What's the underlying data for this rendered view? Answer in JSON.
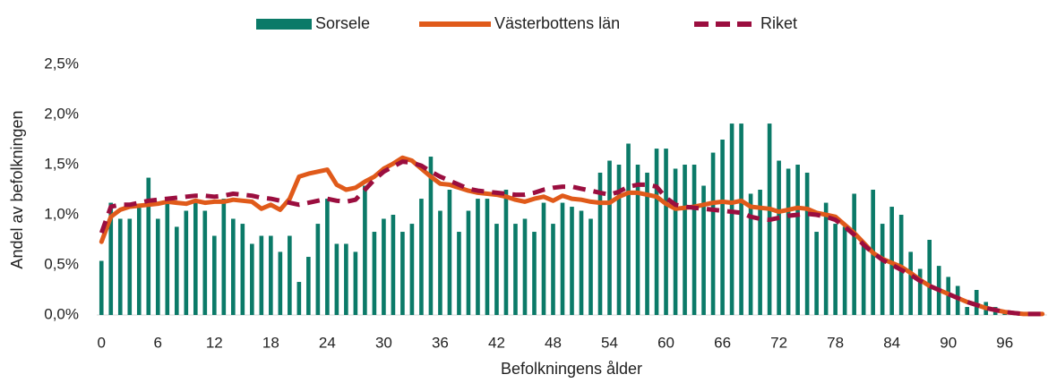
{
  "chart_data": {
    "type": "combo",
    "x_label": "Befolkningens ålder",
    "y_label": "Andel av befolkningen",
    "categories": [
      0,
      null,
      null,
      null,
      null,
      null,
      6,
      null,
      null,
      null,
      null,
      null,
      12,
      null,
      null,
      null,
      null,
      null,
      18,
      null,
      null,
      null,
      null,
      null,
      24,
      null,
      null,
      null,
      null,
      null,
      30,
      null,
      null,
      null,
      null,
      null,
      36,
      null,
      null,
      null,
      null,
      null,
      42,
      null,
      null,
      null,
      null,
      null,
      48,
      null,
      null,
      null,
      null,
      null,
      54,
      null,
      null,
      null,
      null,
      null,
      60,
      null,
      null,
      null,
      null,
      null,
      66,
      null,
      null,
      null,
      null,
      null,
      72,
      null,
      null,
      null,
      null,
      null,
      78,
      null,
      null,
      null,
      null,
      null,
      84,
      null,
      null,
      null,
      null,
      null,
      90,
      null,
      null,
      null,
      null,
      null,
      96,
      null,
      null,
      null,
      null
    ],
    "ylim": [
      0,
      2.5
    ],
    "yticks": [
      {
        "value": 0,
        "label": "0,0%"
      },
      {
        "value": 0.5,
        "label": "0,5%"
      },
      {
        "value": 1,
        "label": "1,0%"
      },
      {
        "value": 1.5,
        "label": "1,5%"
      },
      {
        "value": 2,
        "label": "2,0%"
      },
      {
        "value": 2.5,
        "label": "2,5%"
      }
    ],
    "grid": false,
    "legend": "top",
    "series": [
      {
        "name": "Sorsele",
        "type": "bar",
        "color": "#0b7a68",
        "values": [
          0.54,
          1.12,
          0.96,
          0.96,
          1.07,
          1.37,
          0.96,
          1.16,
          0.88,
          1.04,
          1.12,
          1.04,
          0.79,
          1.16,
          0.96,
          0.91,
          0.71,
          0.79,
          0.79,
          0.63,
          0.79,
          0.33,
          0.58,
          0.91,
          1.16,
          0.71,
          0.71,
          0.63,
          1.29,
          0.83,
          0.96,
          1.0,
          0.83,
          0.91,
          1.16,
          1.58,
          1.04,
          1.25,
          0.83,
          1.04,
          1.16,
          1.16,
          0.91,
          1.25,
          0.91,
          0.96,
          0.83,
          1.12,
          0.91,
          1.12,
          1.08,
          1.04,
          0.96,
          1.42,
          1.54,
          1.5,
          1.71,
          1.5,
          1.42,
          1.66,
          1.66,
          1.46,
          1.5,
          1.5,
          1.29,
          1.62,
          1.75,
          1.91,
          1.91,
          1.21,
          1.25,
          1.91,
          1.54,
          1.46,
          1.5,
          1.42,
          0.83,
          1.12,
          0.91,
          0.88,
          1.21,
          0.73,
          1.25,
          0.91,
          1.08,
          1.0,
          0.63,
          0.46,
          0.75,
          0.49,
          0.38,
          0.29,
          0.08,
          0.25,
          0.13,
          0.08,
          0.04,
          0.03,
          0.02,
          0.01,
          0.01
        ]
      },
      {
        "name": "Västerbottens län",
        "type": "line",
        "style": "solid",
        "color": "#e05a1a",
        "values": [
          0.73,
          0.98,
          1.05,
          1.08,
          1.09,
          1.1,
          1.11,
          1.13,
          1.12,
          1.11,
          1.14,
          1.12,
          1.13,
          1.13,
          1.15,
          1.14,
          1.13,
          1.06,
          1.1,
          1.05,
          1.16,
          1.38,
          1.41,
          1.43,
          1.45,
          1.3,
          1.25,
          1.27,
          1.33,
          1.38,
          1.46,
          1.51,
          1.57,
          1.54,
          1.46,
          1.38,
          1.31,
          1.3,
          1.27,
          1.24,
          1.22,
          1.21,
          1.2,
          1.18,
          1.15,
          1.13,
          1.16,
          1.18,
          1.14,
          1.19,
          1.16,
          1.15,
          1.13,
          1.12,
          1.12,
          1.18,
          1.22,
          1.22,
          1.2,
          1.18,
          1.11,
          1.06,
          1.07,
          1.08,
          1.1,
          1.12,
          1.13,
          1.12,
          1.14,
          1.08,
          1.07,
          1.06,
          1.03,
          1.05,
          1.07,
          1.06,
          1.02,
          1.0,
          0.98,
          0.9,
          0.82,
          0.72,
          0.62,
          0.56,
          0.52,
          0.48,
          0.42,
          0.35,
          0.29,
          0.25,
          0.21,
          0.17,
          0.13,
          0.1,
          0.07,
          0.05,
          0.03,
          0.02,
          0.01,
          0.01,
          0.01
        ]
      },
      {
        "name": "Riket",
        "type": "line",
        "style": "dashed",
        "color": "#9b0e3f",
        "values": [
          0.82,
          1.08,
          1.1,
          1.1,
          1.12,
          1.14,
          1.15,
          1.16,
          1.17,
          1.18,
          1.19,
          1.19,
          1.18,
          1.19,
          1.21,
          1.2,
          1.19,
          1.17,
          1.16,
          1.14,
          1.12,
          1.1,
          1.12,
          1.14,
          1.16,
          1.14,
          1.13,
          1.15,
          1.25,
          1.35,
          1.43,
          1.48,
          1.53,
          1.52,
          1.49,
          1.43,
          1.38,
          1.34,
          1.3,
          1.26,
          1.24,
          1.23,
          1.22,
          1.21,
          1.2,
          1.2,
          1.22,
          1.25,
          1.27,
          1.28,
          1.28,
          1.26,
          1.24,
          1.22,
          1.2,
          1.23,
          1.28,
          1.3,
          1.3,
          1.28,
          1.17,
          1.1,
          1.08,
          1.07,
          1.06,
          1.05,
          1.04,
          1.03,
          1.02,
          0.98,
          0.96,
          0.95,
          0.97,
          0.99,
          1.0,
          1.01,
          1.0,
          0.98,
          0.95,
          0.88,
          0.8,
          0.7,
          0.62,
          0.55,
          0.5,
          0.45,
          0.4,
          0.34,
          0.29,
          0.25,
          0.21,
          0.17,
          0.13,
          0.1,
          0.07,
          0.05,
          0.03,
          0.02,
          0.01,
          0.01,
          0.01
        ]
      }
    ]
  }
}
